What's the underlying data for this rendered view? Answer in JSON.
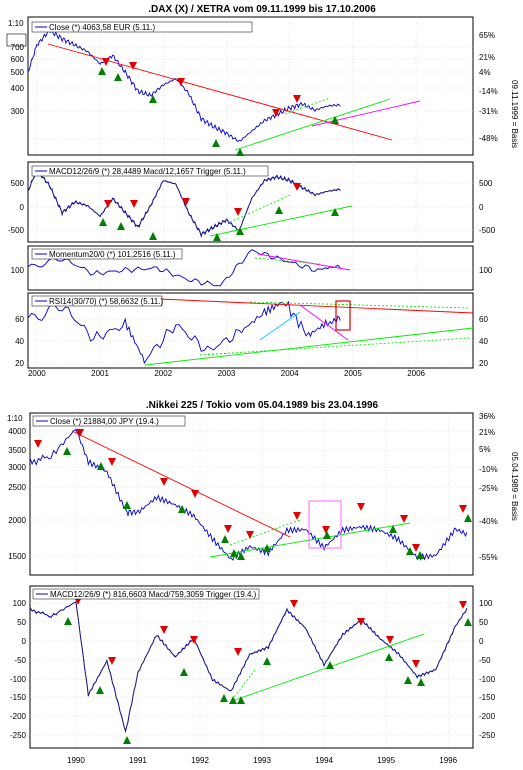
{
  "charts": {
    "dax": {
      "title": ".DAX (X) / XETRA vom 09.11.1999 bis 17.10.2006",
      "zoom_label": "1:10",
      "x_labels": [
        "2000",
        "2001",
        "2002",
        "2003",
        "2004",
        "2005",
        "2006"
      ],
      "right_axis_caption": "09.11.1999 = Basis",
      "price": {
        "legend": "Close (*) 4063,58 EUR (5.11.)",
        "y_ticks": [
          "700",
          "600",
          "500",
          "400",
          "300"
        ],
        "pct_ticks": [
          "65%",
          "21%",
          "4%",
          "-14%",
          "-31%",
          "-48%"
        ]
      },
      "macd": {
        "legend": "MACD12/26/9 (*) 28,4489 Macd/12,1657 Trigger (5.11.)",
        "y_ticks": [
          "500",
          "0",
          "-500"
        ],
        "right_ticks": [
          "500",
          "0",
          "-500"
        ]
      },
      "momentum": {
        "legend": "Momentum20/0 (*) 101,2516 (5.11.)",
        "y_ticks": [
          "100"
        ],
        "right_ticks": [
          "100"
        ]
      },
      "rsi": {
        "legend": "RSI14(30/70) (*) 58,6632 (5.11.)",
        "y_ticks": [
          "60",
          "40",
          "20"
        ],
        "right_ticks": [
          "60",
          "40",
          "20"
        ]
      }
    },
    "nikkei": {
      "title": ".Nikkei 225 / Tokio vom 05.04.1989 bis 23.04.1996",
      "zoom_label": "1:10",
      "x_labels": [
        "1990",
        "1991",
        "1992",
        "1993",
        "1994",
        "1995",
        "1996"
      ],
      "right_axis_caption": "05.04.1989 = Basis",
      "price": {
        "legend": "Close (*) 21884,00 JPY (19.4.)",
        "y_ticks": [
          "4000",
          "3500",
          "3000",
          "2500",
          "2000",
          "1500"
        ],
        "pct_ticks": [
          "36%",
          "21%",
          "5%",
          "-10%",
          "-25%",
          "-40%",
          "-55%"
        ]
      },
      "macd": {
        "legend": "MACD12/26/9 (*) 816,6603 Macd/759,3059 Trigger (19.4.)",
        "y_ticks": [
          "100",
          "50",
          "0",
          "-50",
          "-100",
          "-150",
          "-200",
          "-250"
        ],
        "right_ticks": [
          "100",
          "50",
          "0",
          "-50",
          "-100",
          "-150",
          "-200",
          "-250"
        ]
      }
    }
  },
  "colors": {
    "series": "#0000cc",
    "trigger": "#202080",
    "trend_down": "#ff0000",
    "trend_up": "#00ee00",
    "trend_magenta": "#ff00ff",
    "trend_cyan": "#00ccff",
    "sell_marker": "#e00000",
    "buy_marker": "#008000",
    "highlight_box_dax": "#dd0000",
    "highlight_box_nikkei": "#ff66ff"
  },
  "chart_data": [
    {
      "type": "line",
      "title": ".DAX (X) / XETRA vom 09.11.1999 bis 17.10.2006",
      "panels": [
        {
          "name": "Close (*) 4063,58 EUR (5.11.)",
          "series": [
            {
              "name": "Close",
              "x": [
                1999.86,
                2000.0,
                2000.2,
                2000.4,
                2000.6,
                2000.8,
                2001.0,
                2001.2,
                2001.4,
                2001.6,
                2001.8,
                2002.0,
                2002.2,
                2002.4,
                2002.6,
                2002.8,
                2003.0,
                2003.2,
                2003.4,
                2003.6,
                2003.8,
                2004.0,
                2004.2,
                2004.4,
                2004.6,
                2004.8
              ],
              "values": [
                560,
                690,
                760,
                720,
                690,
                660,
                600,
                640,
                560,
                470,
                450,
                500,
                530,
                460,
                340,
                300,
                270,
                230,
                280,
                330,
                360,
                390,
                410,
                380,
                400,
                405
              ]
            }
          ]
        },
        {
          "name": "MACD12/26/9 (*) 28,4489 Macd/12,1657 Trigger (5.11.)",
          "series": [
            {
              "name": "Macd",
              "x": [
                1999.86,
                2000.0,
                2000.2,
                2000.4,
                2000.6,
                2000.8,
                2001.0,
                2001.2,
                2001.4,
                2001.6,
                2001.8,
                2002.0,
                2002.2,
                2002.4,
                2002.6,
                2002.8,
                2003.0,
                2003.2,
                2003.4,
                2003.6,
                2003.8,
                2004.0,
                2004.2,
                2004.4,
                2004.6,
                2004.8
              ],
              "values": [
                0,
                300,
                80,
                -300,
                -150,
                -200,
                -350,
                -100,
                -300,
                -500,
                -200,
                150,
                100,
                -300,
                -600,
                -500,
                -400,
                -550,
                -100,
                150,
                200,
                150,
                50,
                -50,
                0,
                28
              ]
            }
          ]
        },
        {
          "name": "Momentum20/0 (*) 101,2516 (5.11.)",
          "series": [
            {
              "name": "Momentum",
              "x": [
                1999.86,
                2000.4,
                2000.9,
                2001.4,
                2001.9,
                2002.4,
                2002.9,
                2003.4,
                2003.9,
                2004.4,
                2004.8
              ],
              "values": [
                100,
                105,
                97,
                99,
                100,
                94,
                91,
                109,
                104,
                99,
                101
              ]
            }
          ]
        },
        {
          "name": "RSI14(30/70) (*) 58,6632 (5.11.)",
          "series": [
            {
              "name": "RSI",
              "x": [
                1999.86,
                2000.4,
                2000.9,
                2001.4,
                2001.7,
                2002.2,
                2002.7,
                2003.2,
                2003.6,
                2003.9,
                2004.3,
                2004.6,
                2004.8
              ],
              "values": [
                55,
                68,
                40,
                52,
                22,
                52,
                30,
                45,
                62,
                72,
                42,
                52,
                58
              ]
            }
          ]
        }
      ],
      "x_ticks": [
        "2000",
        "2001",
        "2002",
        "2003",
        "2004",
        "2005",
        "2006"
      ]
    },
    {
      "type": "line",
      "title": ".Nikkei 225 / Tokio vom 05.04.1989 bis 23.04.1996",
      "panels": [
        {
          "name": "Close (*) 21884,00 JPY (19.4.)",
          "series": [
            {
              "name": "Close",
              "x": [
                1989.26,
                1989.6,
                1990.0,
                1990.2,
                1990.5,
                1990.8,
                1991.0,
                1991.3,
                1991.6,
                1991.9,
                1992.2,
                1992.5,
                1992.8,
                1993.1,
                1993.4,
                1993.7,
                1994.0,
                1994.3,
                1994.6,
                1994.9,
                1995.2,
                1995.5,
                1995.8,
                1996.1,
                1996.3
              ],
              "values": [
                3300,
                3400,
                3900,
                3300,
                3100,
                2400,
                2400,
                2650,
                2500,
                2300,
                1900,
                1550,
                1800,
                1700,
                2100,
                2100,
                1750,
                2050,
                2100,
                2050,
                1900,
                1600,
                1650,
                2100,
                2000
              ]
            }
          ]
        },
        {
          "name": "MACD12/26/9 (*) 816,6603 Macd/759,3059 Trigger (19.4.)",
          "series": [
            {
              "name": "Macd",
              "x": [
                1989.26,
                1989.6,
                1990.0,
                1990.2,
                1990.5,
                1990.8,
                1991.0,
                1991.3,
                1991.6,
                1991.9,
                1992.2,
                1992.5,
                1992.8,
                1993.1,
                1993.4,
                1993.7,
                1994.0,
                1994.3,
                1994.6,
                1994.9,
                1995.2,
                1995.5,
                1995.8,
                1996.1,
                1996.3
              ],
              "values": [
                80,
                60,
                100,
                -150,
                -60,
                -250,
                -90,
                10,
                -50,
                0,
                -110,
                -140,
                -40,
                -20,
                80,
                30,
                -70,
                10,
                50,
                0,
                -40,
                -100,
                -80,
                30,
                80
              ]
            }
          ]
        }
      ],
      "x_ticks": [
        "1990",
        "1991",
        "1992",
        "1993",
        "1994",
        "1995",
        "1996"
      ]
    }
  ]
}
